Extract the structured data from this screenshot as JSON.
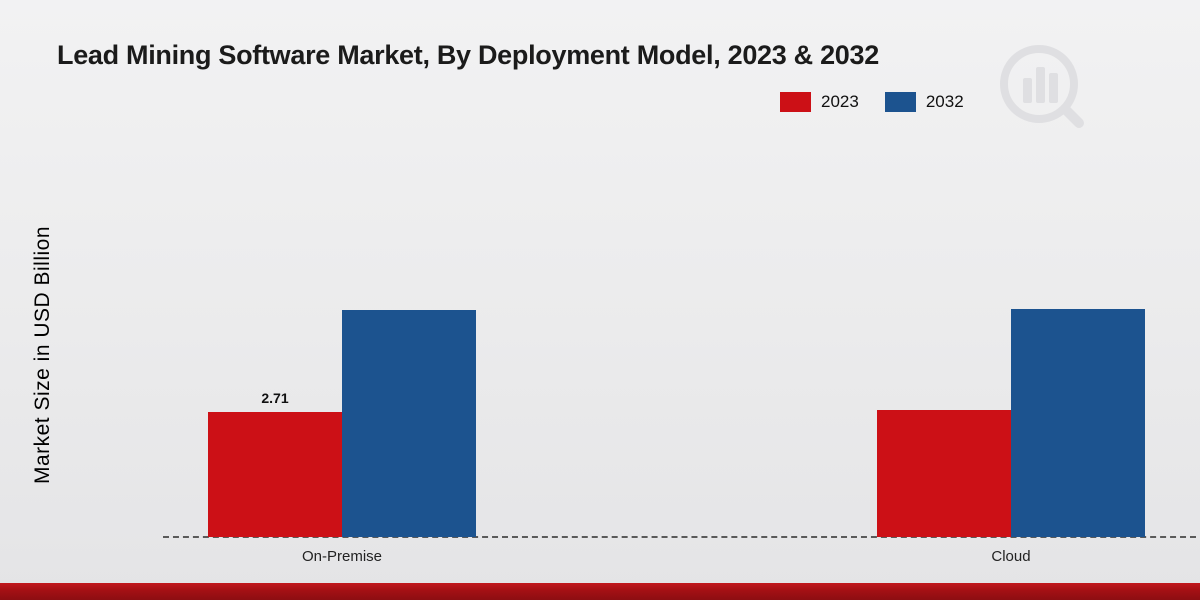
{
  "chart_data": {
    "type": "bar",
    "title": "Lead Mining Software Market, By Deployment Model, 2023 & 2032",
    "ylabel": "Market Size in USD Billion",
    "categories": [
      "On-Premise",
      "Cloud"
    ],
    "series": [
      {
        "name": "2023",
        "color": "#cc1016",
        "values": [
          2.71,
          2.75
        ],
        "value_labels": [
          "2.71",
          ""
        ]
      },
      {
        "name": "2032",
        "color": "#1c538f",
        "values": [
          4.92,
          4.95
        ],
        "value_labels": [
          "",
          ""
        ]
      }
    ],
    "legend_position": "top-right",
    "grid": false,
    "baseline_style": "dashed",
    "ylim": [
      0,
      6
    ]
  }
}
